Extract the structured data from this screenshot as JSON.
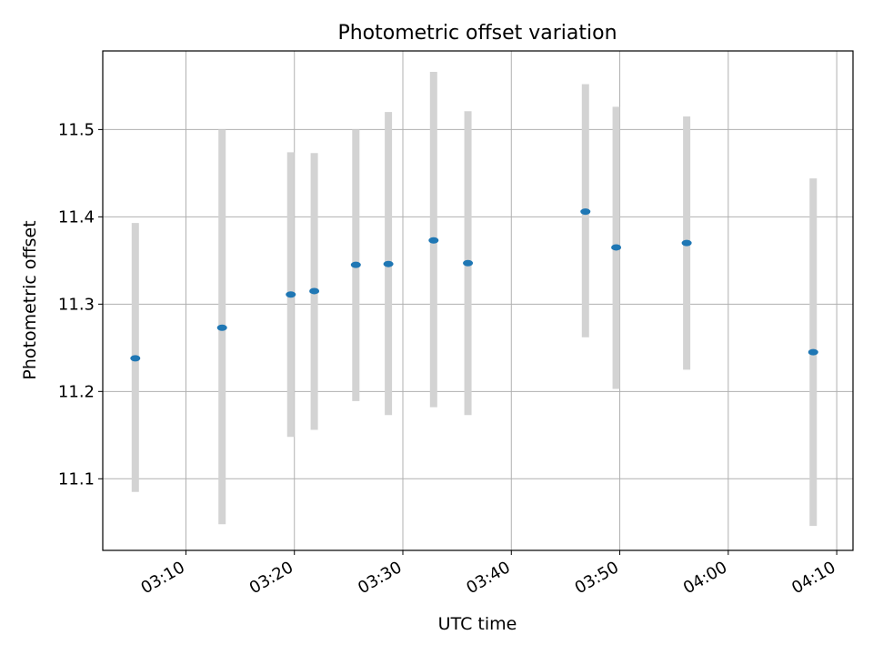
{
  "chart_data": {
    "type": "scatter",
    "title": "Photometric offset variation",
    "xlabel": "UTC time",
    "ylabel": "Photometric offset",
    "xlim": [
      "03:02:20",
      "04:11:30"
    ],
    "ylim": [
      11.018,
      11.59
    ],
    "grid": true,
    "x_ticks": [
      "03:10",
      "03:20",
      "03:30",
      "03:40",
      "03:50",
      "04:00",
      "04:10"
    ],
    "y_ticks": [
      "11.1",
      "11.2",
      "11.3",
      "11.4",
      "11.5"
    ],
    "colors": {
      "point": "#1f77b4",
      "errorbar": "#d3d3d3",
      "grid": "#b0b0b0"
    },
    "points": [
      {
        "x": "03:05:20",
        "y": 11.238,
        "ylow": 11.085,
        "yhigh": 11.393
      },
      {
        "x": "03:13:20",
        "y": 11.273,
        "ylow": 11.048,
        "yhigh": 11.5
      },
      {
        "x": "03:19:40",
        "y": 11.311,
        "ylow": 11.148,
        "yhigh": 11.474
      },
      {
        "x": "03:21:50",
        "y": 11.315,
        "ylow": 11.156,
        "yhigh": 11.473
      },
      {
        "x": "03:25:40",
        "y": 11.345,
        "ylow": 11.189,
        "yhigh": 11.5
      },
      {
        "x": "03:28:40",
        "y": 11.346,
        "ylow": 11.173,
        "yhigh": 11.52
      },
      {
        "x": "03:32:50",
        "y": 11.373,
        "ylow": 11.182,
        "yhigh": 11.566
      },
      {
        "x": "03:36:00",
        "y": 11.347,
        "ylow": 11.173,
        "yhigh": 11.521
      },
      {
        "x": "03:46:50",
        "y": 11.406,
        "ylow": 11.262,
        "yhigh": 11.552
      },
      {
        "x": "03:49:40",
        "y": 11.365,
        "ylow": 11.203,
        "yhigh": 11.526
      },
      {
        "x": "03:56:10",
        "y": 11.37,
        "ylow": 11.225,
        "yhigh": 11.515
      },
      {
        "x": "04:07:50",
        "y": 11.245,
        "ylow": 11.046,
        "yhigh": 11.444
      }
    ]
  }
}
